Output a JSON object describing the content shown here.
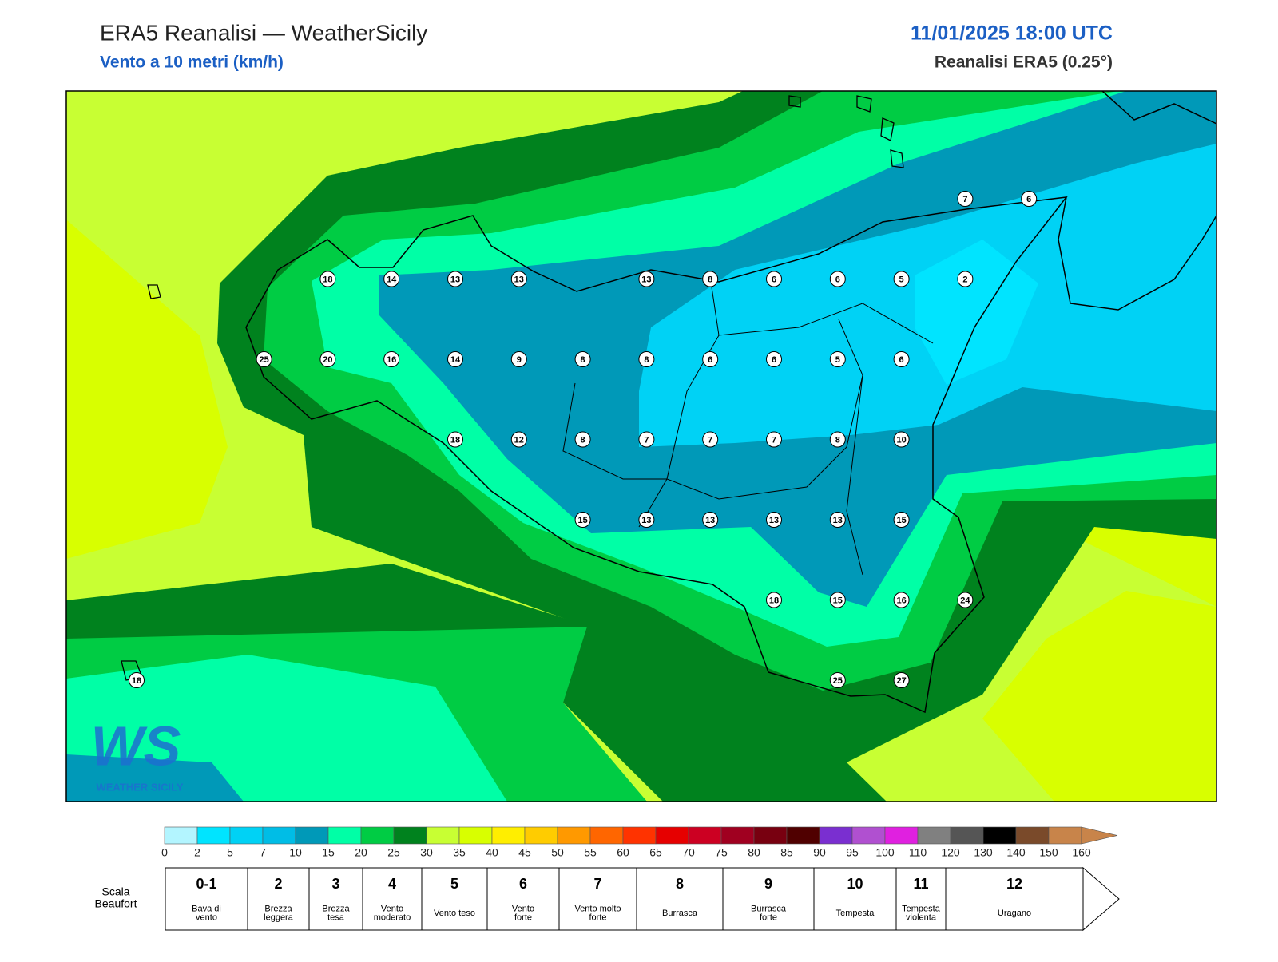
{
  "header": {
    "title": "ERA5 Reanalisi — WeatherSicily",
    "subtitle": "Vento a 10 metri (km/h)",
    "date": "11/01/2025 18:00 UTC",
    "source": "Reanalisi ERA5 (0.25°)"
  },
  "logo": {
    "mark": "WS",
    "text": "WEATHER SICILY"
  },
  "stations": [
    18,
    14,
    13,
    13,
    13,
    8,
    6,
    6,
    5,
    2,
    7,
    6,
    25,
    20,
    16,
    14,
    9,
    8,
    8,
    6,
    6,
    5,
    6,
    18,
    12,
    8,
    7,
    7,
    7,
    8,
    10,
    15,
    13,
    13,
    13,
    13,
    15,
    18,
    15,
    16,
    24,
    25,
    27,
    18
  ],
  "colorbar": {
    "ticks": [
      0,
      2,
      5,
      7,
      10,
      15,
      20,
      25,
      30,
      35,
      40,
      45,
      50,
      55,
      60,
      65,
      70,
      75,
      80,
      85,
      90,
      95,
      100,
      110,
      120,
      130,
      140,
      150,
      160
    ],
    "colors": [
      "#b3f5ff",
      "#00e4ff",
      "#00d2f5",
      "#00bde6",
      "#0099b8",
      "#00ffa6",
      "#00cc44",
      "#00821e",
      "#c8ff33",
      "#d8ff00",
      "#ffee00",
      "#ffcc00",
      "#ff9900",
      "#ff6600",
      "#ff3300",
      "#e60000",
      "#cc0022",
      "#a00020",
      "#780010",
      "#500000",
      "#7a2fd0",
      "#b050d0",
      "#e020e0",
      "#808080",
      "#555555",
      "#000000",
      "#7a4a2a",
      "#c8844a"
    ]
  },
  "beaufort": {
    "label": [
      "Scala",
      "Beaufort"
    ],
    "classes": [
      {
        "number": "0-1",
        "lines": [
          "Bava di",
          "vento"
        ]
      },
      {
        "number": "2",
        "lines": [
          "Brezza",
          "leggera"
        ]
      },
      {
        "number": "3",
        "lines": [
          "Brezza",
          "tesa"
        ]
      },
      {
        "number": "4",
        "lines": [
          "Vento",
          "moderato"
        ]
      },
      {
        "number": "5",
        "lines": [
          "Vento teso"
        ]
      },
      {
        "number": "6",
        "lines": [
          "Vento",
          "forte"
        ]
      },
      {
        "number": "7",
        "lines": [
          "Vento molto",
          "forte"
        ]
      },
      {
        "number": "8",
        "lines": [
          "Burrasca"
        ]
      },
      {
        "number": "9",
        "lines": [
          "Burrasca",
          "forte"
        ]
      },
      {
        "number": "10",
        "lines": [
          "Tempesta"
        ]
      },
      {
        "number": "11",
        "lines": [
          "Tempesta",
          "violenta"
        ]
      },
      {
        "number": "12",
        "lines": [
          "Uragano"
        ]
      }
    ]
  }
}
